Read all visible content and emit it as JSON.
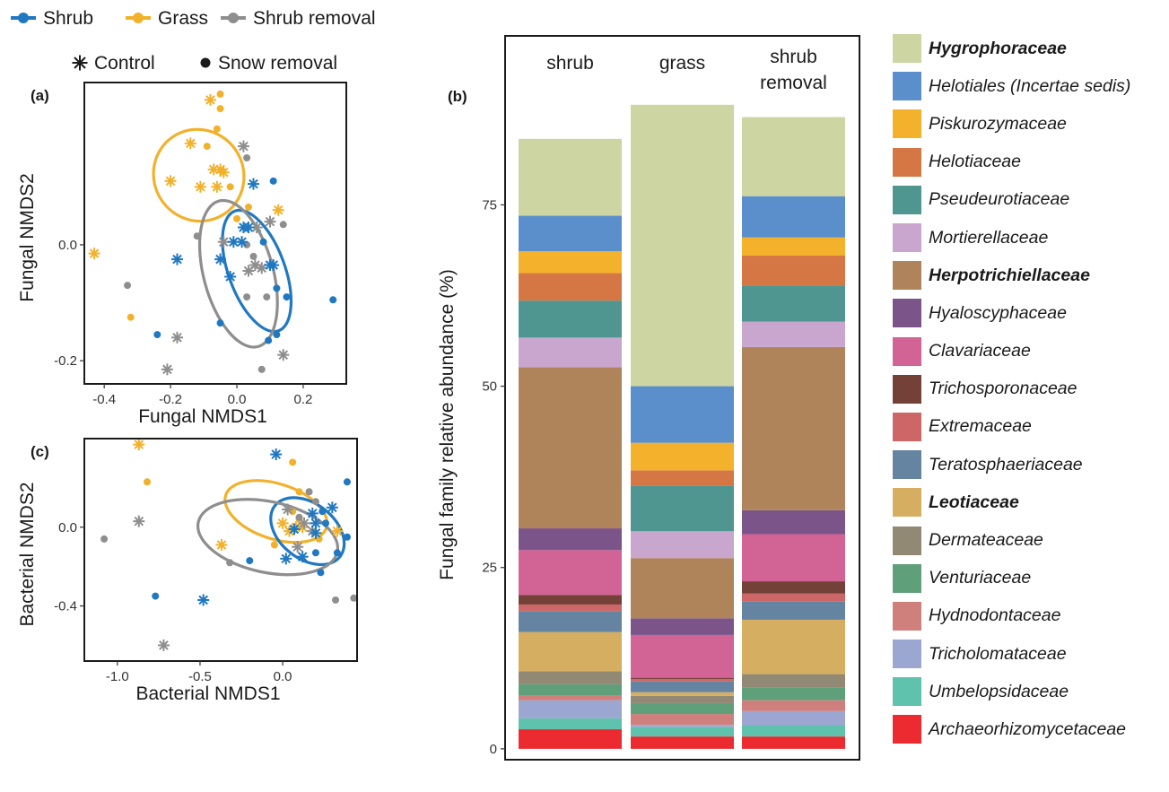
{
  "legend_groups": {
    "items": [
      {
        "label": "Shrub",
        "color": "#1f78c1"
      },
      {
        "label": "Grass",
        "color": "#f2b12b"
      },
      {
        "label": "Shrub removal",
        "color": "#8e8e8e"
      }
    ]
  },
  "legend_treatment": {
    "items": [
      {
        "label": "Control",
        "symbol": "asterisk"
      },
      {
        "label": "Snow removal",
        "symbol": "dot"
      }
    ]
  },
  "family_legend": [
    {
      "name": "Hygrophoraceae",
      "color": "#cdd6a3",
      "bold": true
    },
    {
      "name": "Helotiales (Incertae sedis)",
      "color": "#5b8fcc",
      "bold": false
    },
    {
      "name": "Piskurozymaceae",
      "color": "#f4b12c",
      "bold": false
    },
    {
      "name": "Helotiaceae",
      "color": "#d57745",
      "bold": false
    },
    {
      "name": "Pseudeurotiaceae",
      "color": "#4f9690",
      "bold": false
    },
    {
      "name": "Mortierellaceae",
      "color": "#c9a6ce",
      "bold": false
    },
    {
      "name": "Herpotrichiellaceae",
      "color": "#b0845b",
      "bold": true
    },
    {
      "name": "Hyaloscyphaceae",
      "color": "#7b5589",
      "bold": false
    },
    {
      "name": "Clavariaceae",
      "color": "#d16395",
      "bold": false
    },
    {
      "name": "Trichosporonaceae",
      "color": "#744139",
      "bold": false
    },
    {
      "name": "Extremaceae",
      "color": "#cd6666",
      "bold": false
    },
    {
      "name": "Teratosphaeriaceae",
      "color": "#6584a2",
      "bold": false
    },
    {
      "name": "Leotiaceae",
      "color": "#d6ae61",
      "bold": true
    },
    {
      "name": "Dermateaceae",
      "color": "#928975",
      "bold": false
    },
    {
      "name": "Venturiaceae",
      "color": "#5fa07a",
      "bold": false
    },
    {
      "name": "Hydnodontaceae",
      "color": "#cf807d",
      "bold": false
    },
    {
      "name": "Tricholomataceae",
      "color": "#9ba7d0",
      "bold": false
    },
    {
      "name": "Umbelopsidaceae",
      "color": "#5fc2ac",
      "bold": false
    },
    {
      "name": "Archaeorhizomycetaceae",
      "color": "#ec2b30",
      "bold": false
    }
  ],
  "chart_data": [
    {
      "panel": "(a)",
      "type": "scatter",
      "xlabel": "Fungal NMDS1",
      "ylabel": "Fungal NMDS2",
      "xlim": [
        -0.46,
        0.33
      ],
      "ylim": [
        -0.24,
        0.28
      ],
      "xticks": [
        {
          "v": -0.4,
          "label": "-0.4"
        },
        {
          "v": -0.2,
          "label": "-0.2"
        },
        {
          "v": 0.0,
          "label": "0.0"
        },
        {
          "v": 0.2,
          "label": "0.2"
        }
      ],
      "yticks": [
        {
          "v": 0.0,
          "label": "0.0"
        },
        {
          "v": -0.2,
          "label": "-0.2"
        }
      ],
      "ellipses": [
        {
          "group": "Grass",
          "cx": -0.115,
          "cy": 0.12,
          "rx": 0.135,
          "ry": 0.08,
          "angle": 33
        },
        {
          "group": "Shrub",
          "cx": 0.06,
          "cy": -0.045,
          "rx": 0.085,
          "ry": 0.11,
          "angle": 20
        },
        {
          "group": "Shrub removal",
          "cx": 0.005,
          "cy": -0.05,
          "rx": 0.105,
          "ry": 0.13,
          "angle": 15
        }
      ],
      "points": [
        {
          "x": -0.05,
          "y": 0.26,
          "g": "Grass",
          "s": "dot"
        },
        {
          "x": -0.08,
          "y": 0.25,
          "g": "Grass",
          "s": "asterisk"
        },
        {
          "x": -0.05,
          "y": 0.235,
          "g": "Grass",
          "s": "dot"
        },
        {
          "x": -0.06,
          "y": 0.2,
          "g": "Grass",
          "s": "dot"
        },
        {
          "x": -0.14,
          "y": 0.175,
          "g": "Grass",
          "s": "asterisk"
        },
        {
          "x": -0.09,
          "y": 0.17,
          "g": "Grass",
          "s": "dot"
        },
        {
          "x": -0.05,
          "y": 0.13,
          "g": "Grass",
          "s": "asterisk"
        },
        {
          "x": -0.07,
          "y": 0.13,
          "g": "Grass",
          "s": "asterisk"
        },
        {
          "x": -0.04,
          "y": 0.125,
          "g": "Grass",
          "s": "asterisk"
        },
        {
          "x": -0.2,
          "y": 0.11,
          "g": "Grass",
          "s": "asterisk"
        },
        {
          "x": -0.11,
          "y": 0.1,
          "g": "Grass",
          "s": "asterisk"
        },
        {
          "x": -0.06,
          "y": 0.1,
          "g": "Grass",
          "s": "asterisk"
        },
        {
          "x": -0.02,
          "y": 0.1,
          "g": "Grass",
          "s": "dot"
        },
        {
          "x": 0.035,
          "y": 0.065,
          "g": "Grass",
          "s": "dot"
        },
        {
          "x": 0.125,
          "y": 0.06,
          "g": "Grass",
          "s": "asterisk"
        },
        {
          "x": 0.0,
          "y": 0.045,
          "g": "Grass",
          "s": "dot"
        },
        {
          "x": -0.43,
          "y": -0.015,
          "g": "Grass",
          "s": "asterisk"
        },
        {
          "x": -0.32,
          "y": -0.125,
          "g": "Grass",
          "s": "dot"
        },
        {
          "x": 0.02,
          "y": 0.17,
          "g": "Shrub removal",
          "s": "asterisk"
        },
        {
          "x": 0.03,
          "y": 0.15,
          "g": "Shrub removal",
          "s": "dot"
        },
        {
          "x": 0.1,
          "y": 0.04,
          "g": "Shrub removal",
          "s": "asterisk"
        },
        {
          "x": 0.14,
          "y": 0.035,
          "g": "Shrub removal",
          "s": "dot"
        },
        {
          "x": -0.12,
          "y": 0.015,
          "g": "Shrub removal",
          "s": "dot"
        },
        {
          "x": 0.06,
          "y": 0.03,
          "g": "Shrub removal",
          "s": "asterisk"
        },
        {
          "x": -0.04,
          "y": 0.005,
          "g": "Shrub removal",
          "s": "asterisk"
        },
        {
          "x": 0.03,
          "y": 0.0,
          "g": "Shrub removal",
          "s": "dot"
        },
        {
          "x": 0.05,
          "y": -0.02,
          "g": "Shrub removal",
          "s": "dot"
        },
        {
          "x": 0.055,
          "y": -0.035,
          "g": "Shrub removal",
          "s": "asterisk"
        },
        {
          "x": 0.035,
          "y": -0.045,
          "g": "Shrub removal",
          "s": "asterisk"
        },
        {
          "x": 0.075,
          "y": -0.04,
          "g": "Shrub removal",
          "s": "asterisk"
        },
        {
          "x": 0.03,
          "y": -0.09,
          "g": "Shrub removal",
          "s": "dot"
        },
        {
          "x": 0.09,
          "y": -0.09,
          "g": "Shrub removal",
          "s": "dot"
        },
        {
          "x": -0.33,
          "y": -0.07,
          "g": "Shrub removal",
          "s": "dot"
        },
        {
          "x": -0.18,
          "y": -0.16,
          "g": "Shrub removal",
          "s": "asterisk"
        },
        {
          "x": 0.14,
          "y": -0.19,
          "g": "Shrub removal",
          "s": "asterisk"
        },
        {
          "x": -0.21,
          "y": -0.215,
          "g": "Shrub removal",
          "s": "asterisk"
        },
        {
          "x": 0.075,
          "y": -0.215,
          "g": "Shrub removal",
          "s": "dot"
        },
        {
          "x": 0.11,
          "y": 0.11,
          "g": "Shrub",
          "s": "dot"
        },
        {
          "x": 0.05,
          "y": 0.105,
          "g": "Shrub",
          "s": "asterisk"
        },
        {
          "x": 0.02,
          "y": 0.03,
          "g": "Shrub",
          "s": "asterisk"
        },
        {
          "x": 0.035,
          "y": 0.03,
          "g": "Shrub",
          "s": "asterisk"
        },
        {
          "x": -0.01,
          "y": 0.005,
          "g": "Shrub",
          "s": "asterisk"
        },
        {
          "x": 0.015,
          "y": 0.005,
          "g": "Shrub",
          "s": "asterisk"
        },
        {
          "x": 0.08,
          "y": 0.005,
          "g": "Shrub",
          "s": "dot"
        },
        {
          "x": -0.18,
          "y": -0.025,
          "g": "Shrub",
          "s": "asterisk"
        },
        {
          "x": -0.05,
          "y": -0.025,
          "g": "Shrub",
          "s": "asterisk"
        },
        {
          "x": 0.1,
          "y": -0.035,
          "g": "Shrub",
          "s": "asterisk"
        },
        {
          "x": 0.11,
          "y": -0.035,
          "g": "Shrub",
          "s": "asterisk"
        },
        {
          "x": -0.02,
          "y": -0.055,
          "g": "Shrub",
          "s": "asterisk"
        },
        {
          "x": 0.12,
          "y": -0.075,
          "g": "Shrub",
          "s": "dot"
        },
        {
          "x": 0.15,
          "y": -0.09,
          "g": "Shrub",
          "s": "dot"
        },
        {
          "x": 0.29,
          "y": -0.095,
          "g": "Shrub",
          "s": "dot"
        },
        {
          "x": -0.05,
          "y": -0.135,
          "g": "Shrub",
          "s": "dot"
        },
        {
          "x": -0.24,
          "y": -0.155,
          "g": "Shrub",
          "s": "dot"
        },
        {
          "x": 0.12,
          "y": -0.155,
          "g": "Shrub",
          "s": "dot"
        },
        {
          "x": 0.095,
          "y": -0.165,
          "g": "Shrub",
          "s": "dot"
        }
      ]
    },
    {
      "panel": "(c)",
      "type": "scatter",
      "xlabel": "Bacterial NMDS1",
      "ylabel": "Bacterial NMDS2",
      "xlim": [
        -1.2,
        0.45
      ],
      "ylim": [
        -0.68,
        0.45
      ],
      "xticks": [
        {
          "v": -1.0,
          "label": "-1.0"
        },
        {
          "v": -0.5,
          "label": "-0.5"
        },
        {
          "v": 0.0,
          "label": "0.0"
        }
      ],
      "yticks": [
        {
          "v": 0.0,
          "label": "0.0"
        },
        {
          "v": -0.4,
          "label": "-0.4"
        }
      ],
      "ellipses": [
        {
          "group": "Grass",
          "cx": -0.04,
          "cy": 0.08,
          "rx": 0.32,
          "ry": 0.14,
          "angle": -18
        },
        {
          "group": "Shrub",
          "cx": 0.15,
          "cy": -0.02,
          "rx": 0.25,
          "ry": 0.14,
          "angle": -38
        },
        {
          "group": "Shrub removal",
          "cx": -0.09,
          "cy": -0.05,
          "rx": 0.43,
          "ry": 0.18,
          "angle": -12
        }
      ],
      "points": [
        {
          "x": -0.87,
          "y": 0.42,
          "g": "Grass",
          "s": "asterisk"
        },
        {
          "x": 0.06,
          "y": 0.33,
          "g": "Grass",
          "s": "dot"
        },
        {
          "x": -0.82,
          "y": 0.23,
          "g": "Grass",
          "s": "dot"
        },
        {
          "x": 0.1,
          "y": 0.18,
          "g": "Grass",
          "s": "dot"
        },
        {
          "x": 0.06,
          "y": 0.08,
          "g": "Grass",
          "s": "dot"
        },
        {
          "x": 0.1,
          "y": 0.04,
          "g": "Grass",
          "s": "dot"
        },
        {
          "x": 0.0,
          "y": 0.02,
          "g": "Grass",
          "s": "asterisk"
        },
        {
          "x": 0.08,
          "y": 0.0,
          "g": "Grass",
          "s": "asterisk"
        },
        {
          "x": 0.12,
          "y": 0.0,
          "g": "Grass",
          "s": "asterisk"
        },
        {
          "x": 0.04,
          "y": -0.02,
          "g": "Grass",
          "s": "asterisk"
        },
        {
          "x": 0.33,
          "y": -0.02,
          "g": "Grass",
          "s": "asterisk"
        },
        {
          "x": -0.37,
          "y": -0.09,
          "g": "Grass",
          "s": "asterisk"
        },
        {
          "x": -0.05,
          "y": -0.09,
          "g": "Grass",
          "s": "dot"
        },
        {
          "x": 0.22,
          "y": -0.06,
          "g": "Grass",
          "s": "dot"
        },
        {
          "x": 0.16,
          "y": 0.18,
          "g": "Shrub removal",
          "s": "dot"
        },
        {
          "x": 0.2,
          "y": 0.13,
          "g": "Shrub removal",
          "s": "dot"
        },
        {
          "x": 0.03,
          "y": 0.09,
          "g": "Shrub removal",
          "s": "asterisk"
        },
        {
          "x": -0.87,
          "y": 0.03,
          "g": "Shrub removal",
          "s": "asterisk"
        },
        {
          "x": 0.1,
          "y": 0.05,
          "g": "Shrub removal",
          "s": "dot"
        },
        {
          "x": 0.13,
          "y": 0.02,
          "g": "Shrub removal",
          "s": "asterisk"
        },
        {
          "x": 0.18,
          "y": -0.02,
          "g": "Shrub removal",
          "s": "asterisk"
        },
        {
          "x": -1.08,
          "y": -0.06,
          "g": "Shrub removal",
          "s": "dot"
        },
        {
          "x": 0.09,
          "y": -0.1,
          "g": "Shrub removal",
          "s": "asterisk"
        },
        {
          "x": -0.32,
          "y": -0.18,
          "g": "Shrub removal",
          "s": "dot"
        },
        {
          "x": 0.32,
          "y": -0.37,
          "g": "Shrub removal",
          "s": "dot"
        },
        {
          "x": 0.43,
          "y": -0.36,
          "g": "Shrub removal",
          "s": "dot"
        },
        {
          "x": -0.72,
          "y": -0.6,
          "g": "Shrub removal",
          "s": "asterisk"
        },
        {
          "x": -0.04,
          "y": 0.37,
          "g": "Shrub",
          "s": "asterisk"
        },
        {
          "x": 0.39,
          "y": 0.23,
          "g": "Shrub",
          "s": "dot"
        },
        {
          "x": 0.3,
          "y": 0.1,
          "g": "Shrub",
          "s": "asterisk"
        },
        {
          "x": 0.24,
          "y": 0.08,
          "g": "Shrub",
          "s": "dot"
        },
        {
          "x": 0.18,
          "y": 0.07,
          "g": "Shrub",
          "s": "asterisk"
        },
        {
          "x": 0.2,
          "y": 0.02,
          "g": "Shrub",
          "s": "asterisk"
        },
        {
          "x": 0.26,
          "y": 0.02,
          "g": "Shrub",
          "s": "dot"
        },
        {
          "x": 0.07,
          "y": -0.01,
          "g": "Shrub",
          "s": "asterisk"
        },
        {
          "x": 0.2,
          "y": -0.03,
          "g": "Shrub",
          "s": "asterisk"
        },
        {
          "x": 0.39,
          "y": -0.05,
          "g": "Shrub",
          "s": "dot"
        },
        {
          "x": 0.12,
          "y": -0.15,
          "g": "Shrub",
          "s": "asterisk"
        },
        {
          "x": 0.02,
          "y": -0.16,
          "g": "Shrub",
          "s": "asterisk"
        },
        {
          "x": 0.2,
          "y": -0.13,
          "g": "Shrub",
          "s": "dot"
        },
        {
          "x": 0.33,
          "y": -0.13,
          "g": "Shrub",
          "s": "dot"
        },
        {
          "x": -0.2,
          "y": -0.17,
          "g": "Shrub",
          "s": "dot"
        },
        {
          "x": 0.23,
          "y": -0.23,
          "g": "Shrub",
          "s": "dot"
        },
        {
          "x": -0.48,
          "y": -0.37,
          "g": "Shrub",
          "s": "asterisk"
        },
        {
          "x": -0.77,
          "y": -0.35,
          "g": "Shrub",
          "s": "dot"
        }
      ]
    },
    {
      "panel": "(b)",
      "type": "bar",
      "stacked": true,
      "ylabel": "Fungal family relative abundance (%)",
      "ylim": [
        -1.5,
        98.3
      ],
      "yticks": [
        0,
        25,
        50,
        75
      ],
      "categories": [
        {
          "lines": [
            "shrub"
          ]
        },
        {
          "lines": [
            "grass"
          ]
        },
        {
          "lines": [
            "shrub",
            "removal"
          ]
        }
      ],
      "series": [
        {
          "name": "Archaeorhizomycetaceae",
          "values": [
            2.7,
            1.7,
            1.7
          ]
        },
        {
          "name": "Umbelopsidaceae",
          "values": [
            1.5,
            1.3,
            1.5
          ]
        },
        {
          "name": "Tricholomataceae",
          "values": [
            2.5,
            0.3,
            2.0
          ]
        },
        {
          "name": "Hydnodontaceae",
          "values": [
            0.7,
            1.5,
            1.5
          ]
        },
        {
          "name": "Venturiaceae",
          "values": [
            1.5,
            1.5,
            1.8
          ]
        },
        {
          "name": "Dermateaceae",
          "values": [
            1.8,
            1.0,
            1.8
          ]
        },
        {
          "name": "Leotiaceae",
          "values": [
            5.4,
            0.5,
            7.5
          ]
        },
        {
          "name": "Teratosphaeriaceae",
          "values": [
            2.9,
            1.5,
            2.5
          ]
        },
        {
          "name": "Extremaceae",
          "values": [
            0.9,
            0.3,
            1.1
          ]
        },
        {
          "name": "Trichosporonaceae",
          "values": [
            1.3,
            0.2,
            1.7
          ]
        },
        {
          "name": "Clavariaceae",
          "values": [
            6.2,
            5.9,
            6.5
          ]
        },
        {
          "name": "Hyaloscyphaceae",
          "values": [
            3.0,
            2.3,
            3.3
          ]
        },
        {
          "name": "Herpotrichiellaceae",
          "values": [
            22.2,
            8.3,
            22.5
          ]
        },
        {
          "name": "Mortierellaceae",
          "values": [
            4.1,
            3.7,
            3.5
          ]
        },
        {
          "name": "Pseudeurotiaceae",
          "values": [
            5.1,
            6.3,
            5.0
          ]
        },
        {
          "name": "Helotiaceae",
          "values": [
            3.8,
            2.1,
            4.1
          ]
        },
        {
          "name": "Piskurozymaceae",
          "values": [
            3.0,
            3.8,
            2.5
          ]
        },
        {
          "name": "Helotiales (Incertae sedis)",
          "values": [
            4.9,
            7.8,
            5.7
          ]
        },
        {
          "name": "Hygrophoraceae",
          "values": [
            10.6,
            38.8,
            10.9
          ]
        }
      ]
    }
  ]
}
